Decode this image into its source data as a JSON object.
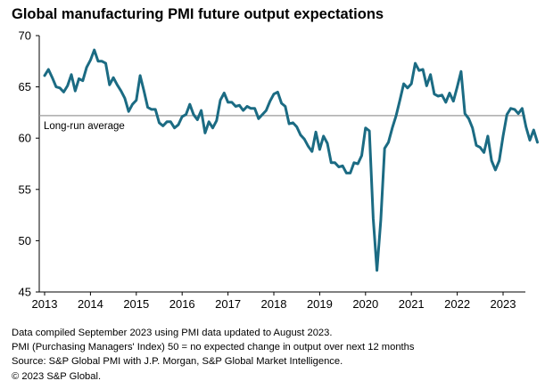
{
  "chart_data": {
    "type": "line",
    "title": "Global manufacturing PMI future output expectations",
    "xlabel": "",
    "ylabel": "",
    "ylim": [
      45,
      70
    ],
    "yticks": [
      45,
      50,
      55,
      60,
      65,
      70
    ],
    "xticks": [
      "2013",
      "2014",
      "2015",
      "2016",
      "2017",
      "2018",
      "2019",
      "2020",
      "2021",
      "2022",
      "2023"
    ],
    "x_start": "2013-01",
    "x_end": "2023-08",
    "line_color": "#1b6b83",
    "reference_line": {
      "label": "Long-run average",
      "value": 62.2,
      "color": "#9a9a9a"
    },
    "series": [
      {
        "name": "Future output expectations",
        "values": [
          66.1,
          66.7,
          65.9,
          65.0,
          64.9,
          64.5,
          65.1,
          66.2,
          64.6,
          65.8,
          65.6,
          66.9,
          67.6,
          68.6,
          67.5,
          67.5,
          67.3,
          65.2,
          65.9,
          65.2,
          64.6,
          63.9,
          62.6,
          63.3,
          63.7,
          66.1,
          64.6,
          63.0,
          62.8,
          62.8,
          61.5,
          61.2,
          61.6,
          61.6,
          61.0,
          61.3,
          62.1,
          62.3,
          63.3,
          62.3,
          61.8,
          62.7,
          60.5,
          61.6,
          61.0,
          61.7,
          63.7,
          64.4,
          63.5,
          63.5,
          63.1,
          63.2,
          62.7,
          63.1,
          62.9,
          62.9,
          61.9,
          62.3,
          62.7,
          63.6,
          64.3,
          64.5,
          63.4,
          63.1,
          61.4,
          61.5,
          61.1,
          60.3,
          59.9,
          59.2,
          58.7,
          60.6,
          58.9,
          60.2,
          59.5,
          57.6,
          57.6,
          57.2,
          57.3,
          56.6,
          56.6,
          57.6,
          57.5,
          58.3,
          61.0,
          60.7,
          52.2,
          47.1,
          52.0,
          59.0,
          59.6,
          61.0,
          62.2,
          63.7,
          65.3,
          64.9,
          65.3,
          67.3,
          66.6,
          66.7,
          65.1,
          66.2,
          64.3,
          64.1,
          64.2,
          63.5,
          64.4,
          63.6,
          65.0,
          66.5,
          62.4,
          61.9,
          61.0,
          59.3,
          59.1,
          58.6,
          60.2,
          57.8,
          56.9,
          57.8,
          60.2,
          62.3,
          62.9,
          62.8,
          62.4,
          62.9,
          61.1,
          59.8,
          60.8,
          59.6
        ]
      }
    ]
  },
  "notes": [
    "Data compiled September 2023 using PMI data updated to August 2023.",
    "PMI (Purchasing Managers' Index) 50 = no expected change in output over next 12 months",
    "Source: S&P Global  PMI with J.P. Morgan, S&P Global Market Intelligence.",
    "© 2023 S&P Global."
  ]
}
